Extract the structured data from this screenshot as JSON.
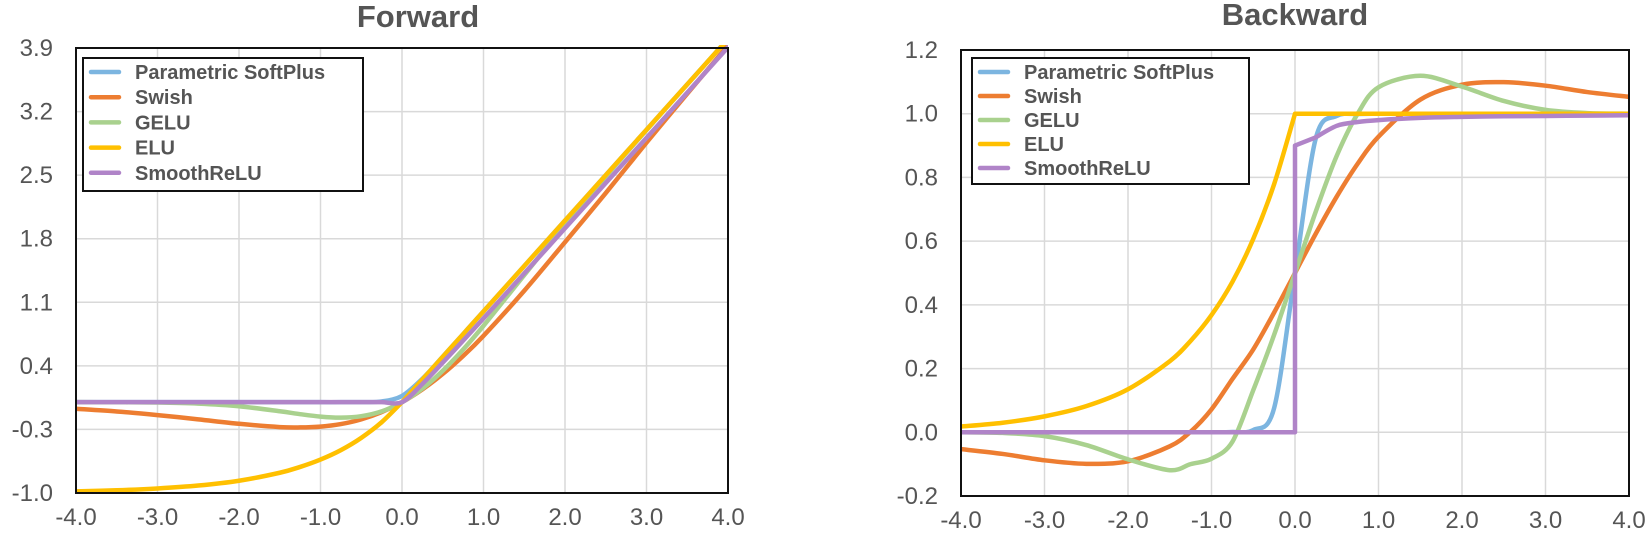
{
  "chart_data": [
    {
      "type": "line",
      "title": "Forward",
      "xlabel": "",
      "ylabel": "",
      "xlim": [
        -4.0,
        4.0
      ],
      "ylim": [
        -1.0,
        3.9
      ],
      "xticks": [
        "-4.0",
        "-3.0",
        "-2.0",
        "-1.0",
        "0.0",
        "1.0",
        "2.0",
        "3.0",
        "4.0"
      ],
      "yticks": [
        "-1.0",
        "-0.3",
        "0.4",
        "1.1",
        "1.8",
        "2.5",
        "3.2",
        "3.9"
      ],
      "grid": true,
      "legend_position": "top-left",
      "x": [
        -4.0,
        -3.5,
        -3.0,
        -2.5,
        -2.0,
        -1.5,
        -1.25,
        -1.0,
        -0.75,
        -0.5,
        -0.25,
        0.0,
        0.25,
        0.5,
        0.75,
        1.0,
        1.5,
        2.0,
        2.5,
        3.0,
        3.5,
        4.0
      ],
      "series": [
        {
          "name": "Parametric SoftPlus",
          "color": "#7cb5e0",
          "values": [
            0.0,
            0.0,
            0.0,
            0.0,
            0.0,
            0.0,
            0.0,
            0.0,
            0.0,
            0.001,
            0.008,
            0.069,
            0.258,
            0.501,
            0.75,
            1.0,
            1.5,
            2.0,
            2.5,
            3.0,
            3.5,
            4.0
          ]
        },
        {
          "name": "Swish",
          "color": "#ed7d31",
          "values": [
            -0.072,
            -0.102,
            -0.142,
            -0.189,
            -0.238,
            -0.274,
            -0.278,
            -0.269,
            -0.241,
            -0.189,
            -0.109,
            0.0,
            0.141,
            0.311,
            0.509,
            0.731,
            1.227,
            1.762,
            2.303,
            2.858,
            3.397,
            3.928
          ]
        },
        {
          "name": "GELU",
          "color": "#a9d18e",
          "values": [
            0.0,
            -0.001,
            -0.004,
            -0.016,
            -0.045,
            -0.1,
            -0.132,
            -0.159,
            -0.17,
            -0.154,
            -0.101,
            0.0,
            0.149,
            0.346,
            0.58,
            0.841,
            1.4,
            1.955,
            2.485,
            2.996,
            3.499,
            4.0
          ]
        },
        {
          "name": "ELU",
          "color": "#ffc000",
          "values": [
            -0.982,
            -0.97,
            -0.95,
            -0.918,
            -0.865,
            -0.777,
            -0.713,
            -0.632,
            -0.528,
            -0.393,
            -0.221,
            0.0,
            0.25,
            0.5,
            0.75,
            1.0,
            1.5,
            2.0,
            2.5,
            3.0,
            3.5,
            4.0
          ]
        },
        {
          "name": "SmoothReLU",
          "color": "#b084c8",
          "values": [
            0.0,
            0.0,
            0.0,
            0.0,
            0.0,
            0.0,
            0.0,
            0.0,
            0.0,
            0.0,
            0.0,
            0.0,
            0.201,
            0.436,
            0.678,
            0.923,
            1.418,
            1.915,
            2.413,
            2.91,
            3.409,
            3.908
          ]
        }
      ]
    },
    {
      "type": "line",
      "title": "Backward",
      "xlabel": "",
      "ylabel": "",
      "xlim": [
        -4.0,
        4.0
      ],
      "ylim": [
        -0.2,
        1.2
      ],
      "xticks": [
        "-4.0",
        "-3.0",
        "-2.0",
        "-1.0",
        "0.0",
        "1.0",
        "2.0",
        "3.0",
        "4.0"
      ],
      "yticks": [
        "-0.2",
        "0.0",
        "0.2",
        "0.4",
        "0.6",
        "0.8",
        "1.0",
        "1.2"
      ],
      "grid": true,
      "legend_position": "top-left",
      "x": [
        -4.0,
        -3.5,
        -3.0,
        -2.5,
        -2.0,
        -1.5,
        -1.25,
        -1.0,
        -0.75,
        -0.5,
        -0.25,
        0.0,
        0.25,
        0.5,
        0.75,
        1.0,
        1.5,
        2.0,
        2.5,
        3.0,
        3.5,
        4.0
      ],
      "series": [
        {
          "name": "Parametric SoftPlus",
          "color": "#7cb5e0",
          "values": [
            0.0,
            0.0,
            0.0,
            0.0,
            0.0,
            0.0,
            0.0,
            0.0,
            0.001,
            0.007,
            0.076,
            0.5,
            0.924,
            0.993,
            0.999,
            1.0,
            1.0,
            1.0,
            1.0,
            1.0,
            1.0,
            1.0
          ]
        },
        {
          "name": "Swish",
          "color": "#ed7d31",
          "values": [
            -0.053,
            -0.068,
            -0.088,
            -0.099,
            -0.091,
            -0.044,
            0.002,
            0.072,
            0.167,
            0.26,
            0.376,
            0.5,
            0.624,
            0.74,
            0.843,
            0.928,
            1.044,
            1.091,
            1.099,
            1.088,
            1.068,
            1.053
          ]
        },
        {
          "name": "GELU",
          "color": "#a9d18e",
          "values": [
            0.0,
            -0.002,
            -0.012,
            -0.04,
            -0.085,
            -0.119,
            -0.1,
            -0.083,
            -0.03,
            0.132,
            0.306,
            0.5,
            0.694,
            0.868,
            1.0,
            1.083,
            1.119,
            1.085,
            1.04,
            1.012,
            1.002,
            1.0
          ]
        },
        {
          "name": "ELU",
          "color": "#ffc000",
          "values": [
            0.018,
            0.03,
            0.05,
            0.082,
            0.135,
            0.223,
            0.287,
            0.368,
            0.472,
            0.607,
            0.779,
            1.0,
            1.0,
            1.0,
            1.0,
            1.0,
            1.0,
            1.0,
            1.0,
            1.0,
            1.0,
            1.0
          ]
        },
        {
          "name": "SmoothReLU",
          "color": "#b084c8",
          "values": [
            0.0,
            0.0,
            0.0,
            0.0,
            0.0,
            0.0,
            0.0,
            0.0,
            0.0,
            0.0,
            0.0,
            0.0,
            0.926,
            0.962,
            0.974,
            0.98,
            0.987,
            0.99,
            0.992,
            0.993,
            0.994,
            0.995
          ]
        }
      ]
    }
  ]
}
